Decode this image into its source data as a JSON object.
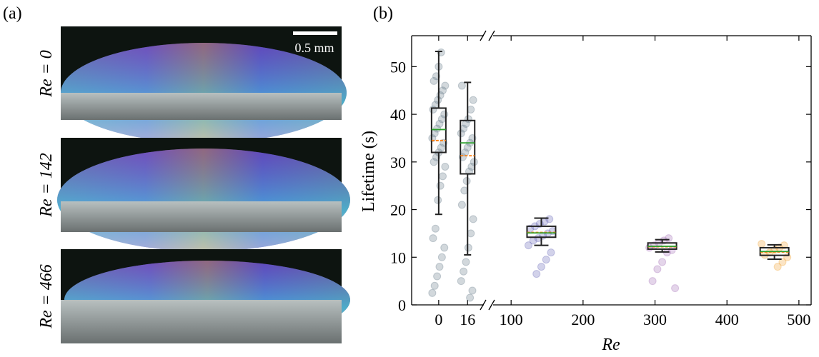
{
  "panel_a": {
    "label": "(a)",
    "scale_bar": "0.5 mm",
    "images": [
      {
        "label": "Re = 0"
      },
      {
        "label": "Re = 142"
      },
      {
        "label": "Re = 466"
      }
    ]
  },
  "chart_data": {
    "type": "box",
    "panel_label": "(b)",
    "xlabel": "Re",
    "ylabel": "Lifetime (s)",
    "xlim": [
      -15,
      517
    ],
    "x_break": [
      27,
      73
    ],
    "ylim": [
      0,
      56.5
    ],
    "xticks": [
      0,
      16,
      100,
      200,
      300,
      400,
      500
    ],
    "yticks": [
      0,
      10,
      20,
      30,
      40,
      50
    ],
    "median_color": "#ff7f0e",
    "mean_color": "#2ca02c",
    "series": [
      {
        "x": 0,
        "color": "#6b7f8c",
        "whisker_low": 19,
        "q1": 32,
        "median": 34.5,
        "mean": 36.8,
        "q3": 41.3,
        "whisker_high": 53.2,
        "points": [
          2.5,
          4,
          6,
          8,
          10,
          12,
          14,
          16,
          22,
          25,
          27,
          29,
          30,
          31,
          32,
          33,
          34,
          35,
          36,
          37,
          38,
          39,
          40,
          41,
          42,
          43,
          44,
          45,
          46,
          47,
          48,
          50,
          53
        ]
      },
      {
        "x": 16,
        "color": "#6b7f8c",
        "whisker_low": 10.5,
        "q1": 27.5,
        "median": 31.3,
        "mean": 34,
        "q3": 38.7,
        "whisker_high": 46.7,
        "points": [
          1.5,
          3,
          5,
          7,
          9,
          12,
          15,
          18,
          21,
          24,
          26,
          28,
          29,
          30,
          31,
          32,
          33,
          34,
          35,
          36,
          37,
          38,
          39,
          41,
          43,
          46
        ]
      },
      {
        "x": 142,
        "color": "#6a6ab8",
        "whisker_low": 12.5,
        "q1": 14.2,
        "median": 15.2,
        "mean": 15.1,
        "q3": 16.5,
        "whisker_high": 18.2,
        "points": [
          6.5,
          8,
          9.5,
          11,
          12.5,
          13.5,
          14,
          14.5,
          15,
          15.5,
          16,
          16.5,
          17,
          17.5,
          18
        ]
      },
      {
        "x": 310,
        "color": "#a574b8",
        "whisker_low": 11.1,
        "q1": 11.7,
        "median": 12.2,
        "mean": 12.3,
        "q3": 13,
        "whisker_high": 13.7,
        "points": [
          3.5,
          5,
          7.5,
          9,
          11,
          11.5,
          12,
          12.5,
          13,
          13.5,
          14
        ]
      },
      {
        "x": 466,
        "color": "#f2a53a",
        "whisker_low": 9.6,
        "q1": 10.4,
        "median": 11.1,
        "mean": 11.2,
        "q3": 12,
        "whisker_high": 12.6,
        "points": [
          8,
          9,
          10,
          10.5,
          11,
          11.5,
          12,
          12.5,
          12.8
        ]
      }
    ]
  }
}
